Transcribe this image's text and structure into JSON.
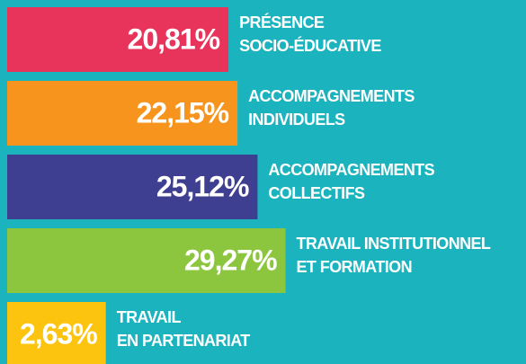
{
  "chart_data": {
    "type": "bar",
    "orientation": "horizontal",
    "categories": [
      [
        "PRÉSENCE",
        "SOCIO-ÉDUCATIVE"
      ],
      [
        "ACCOMPAGNEMENTS",
        "INDIVIDUELS"
      ],
      [
        "ACCOMPAGNEMENTS",
        "COLLECTIFS"
      ],
      [
        "TRAVAIL INSTITUTIONNEL",
        "ET FORMATION"
      ],
      [
        "TRAVAIL",
        "EN PARTENARIAT"
      ]
    ],
    "values": [
      20.81,
      22.15,
      25.12,
      29.27,
      2.63
    ],
    "value_labels": [
      "20,81%",
      "22,15%",
      "25,12%",
      "29,27%",
      "2,63%"
    ],
    "colors": [
      "#e8335a",
      "#f7941d",
      "#3f3f92",
      "#8cc63f",
      "#fcc30f"
    ],
    "background": "#1ab3be"
  }
}
